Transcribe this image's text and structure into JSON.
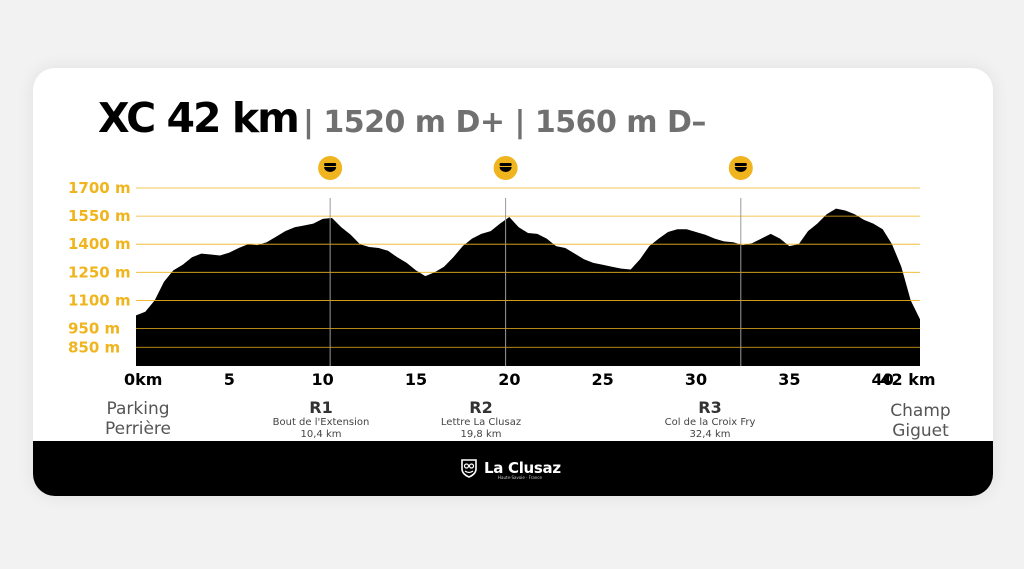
{
  "title": {
    "main": "XC 42 km",
    "sub": "| 1520 m D+ | 1560 m D–"
  },
  "colors": {
    "accent": "#f0b51e",
    "profile": "#000000",
    "background": "#ffffff",
    "footer": "#000000",
    "marker_line": "#999999"
  },
  "start": {
    "line1": "Parking",
    "line2": "Perrière"
  },
  "finish": {
    "line1": "Champ",
    "line2": "Giguet"
  },
  "refuels": [
    {
      "code": "R1",
      "name": "Bout de l'Extension",
      "km_label": "10,4 km",
      "icon": "bowl-icon"
    },
    {
      "code": "R2",
      "name": "Lettre La Clusaz",
      "km_label": "19,8 km",
      "icon": "bowl-icon"
    },
    {
      "code": "R3",
      "name": "Col de la Croix Fry",
      "km_label": "32,4 km",
      "icon": "bowl-icon"
    }
  ],
  "logo": {
    "name": "La Clusaz",
    "tagline": "Haute-Savoie · France",
    "icon": "la-clusaz-emblem-icon"
  },
  "chart_data": {
    "type": "area",
    "x_unit": "km",
    "y_unit": "m",
    "xlim": [
      0,
      42.5
    ],
    "ylim": [
      750,
      1700
    ],
    "yticks": [
      {
        "value": 850,
        "label": "850 m"
      },
      {
        "value": 950,
        "label": "950 m"
      },
      {
        "value": 1100,
        "label": "1100 m"
      },
      {
        "value": 1250,
        "label": "1250 m"
      },
      {
        "value": 1400,
        "label": "1400 m"
      },
      {
        "value": 1550,
        "label": "1550 m"
      },
      {
        "value": 1700,
        "label": "1700 m"
      }
    ],
    "xticks": [
      {
        "value": 0,
        "label": "0km"
      },
      {
        "value": 5,
        "label": "5"
      },
      {
        "value": 10,
        "label": "10"
      },
      {
        "value": 15,
        "label": "15"
      },
      {
        "value": 20,
        "label": "20"
      },
      {
        "value": 25,
        "label": "25"
      },
      {
        "value": 30,
        "label": "30"
      },
      {
        "value": 35,
        "label": "35"
      },
      {
        "value": 40,
        "label": "40"
      },
      {
        "value": 42,
        "label": "42 km"
      }
    ],
    "grid": true,
    "markers_km": [
      10.4,
      19.8,
      32.4
    ],
    "x": [
      0,
      0.5,
      1,
      1.5,
      2,
      2.5,
      3,
      3.5,
      4,
      4.5,
      5,
      5.5,
      6,
      6.5,
      7,
      7.5,
      8,
      8.5,
      9,
      9.5,
      10,
      10.5,
      11,
      11.5,
      12,
      12.5,
      13,
      13.5,
      14,
      14.5,
      15,
      15.5,
      16,
      16.5,
      17,
      17.5,
      18,
      18.5,
      19,
      19.5,
      20,
      20.5,
      21,
      21.5,
      22,
      22.5,
      23,
      23.5,
      24,
      24.5,
      25,
      25.5,
      26,
      26.5,
      27,
      27.5,
      28,
      28.5,
      29,
      29.5,
      30,
      30.5,
      31,
      31.5,
      32,
      32.5,
      33,
      33.5,
      34,
      34.5,
      35,
      35.5,
      36,
      36.5,
      37,
      37.5,
      38,
      38.5,
      39,
      39.5,
      40,
      40.5,
      41,
      41.5,
      42
    ],
    "y": [
      1020,
      1040,
      1100,
      1200,
      1260,
      1290,
      1330,
      1350,
      1345,
      1340,
      1355,
      1380,
      1400,
      1395,
      1410,
      1440,
      1470,
      1490,
      1500,
      1510,
      1535,
      1540,
      1490,
      1450,
      1400,
      1385,
      1380,
      1365,
      1330,
      1300,
      1260,
      1230,
      1250,
      1280,
      1330,
      1390,
      1430,
      1455,
      1470,
      1510,
      1545,
      1490,
      1460,
      1455,
      1430,
      1390,
      1380,
      1350,
      1320,
      1300,
      1290,
      1280,
      1270,
      1265,
      1320,
      1390,
      1430,
      1465,
      1480,
      1480,
      1465,
      1450,
      1430,
      1415,
      1410,
      1395,
      1405,
      1430,
      1455,
      1430,
      1390,
      1400,
      1470,
      1510,
      1560,
      1590,
      1580,
      1560,
      1530,
      1510,
      1480,
      1400,
      1280,
      1100,
      1000
    ]
  }
}
